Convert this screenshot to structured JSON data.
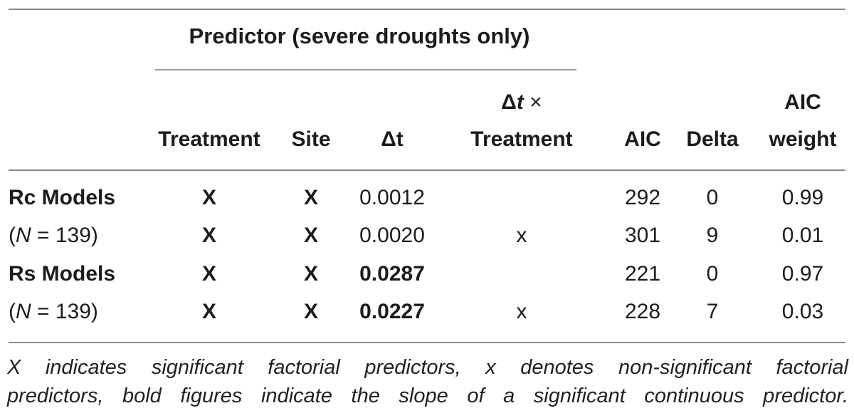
{
  "colors": {
    "text": "#1c1c1c",
    "rule_dark": "#8a8a8a",
    "rule_light": "#9e9e9e"
  },
  "table": {
    "spanner_title": "Predictor (severe droughts only)",
    "header": {
      "treatment": "Treatment",
      "site": "Site",
      "delta_t": "Δt",
      "interaction": {
        "delta": "Δ",
        "t": "t",
        "times": " ×",
        "line2": "Treatment"
      },
      "aic": "AIC",
      "delta": "Delta",
      "aic_weight": {
        "line1": "AIC",
        "line2": "weight"
      }
    },
    "rows": [
      {
        "label_pre": "Rc Models",
        "label_italic": "",
        "label_post": "",
        "label_class": "bold",
        "treatment": "X",
        "site": "X",
        "delta_t": "0.0012",
        "delta_t_class": "",
        "interaction": "",
        "aic": "292",
        "delta": "0",
        "aic_weight": "0.99"
      },
      {
        "label_pre": "(",
        "label_italic": "N",
        "label_post": " = 139)",
        "label_class": "",
        "treatment": "X",
        "site": "X",
        "delta_t": "0.0020",
        "delta_t_class": "",
        "interaction": "x",
        "aic": "301",
        "delta": "9",
        "aic_weight": "0.01"
      },
      {
        "label_pre": "Rs Models",
        "label_italic": "",
        "label_post": "",
        "label_class": "bold",
        "treatment": "X",
        "site": "X",
        "delta_t": "0.0287",
        "delta_t_class": "bold",
        "interaction": "",
        "aic": "221",
        "delta": "0",
        "aic_weight": "0.97"
      },
      {
        "label_pre": "(",
        "label_italic": "N",
        "label_post": " = 139)",
        "label_class": "",
        "treatment": "X",
        "site": "X",
        "delta_t": "0.0227",
        "delta_t_class": "bold",
        "interaction": "x",
        "aic": "228",
        "delta": "7",
        "aic_weight": "0.03"
      }
    ]
  },
  "footnote": {
    "line1": "X indicates significant factorial predictors, x denotes non-significant factorial",
    "line2": "predictors, bold figures indicate the slope of a significant continuous predictor."
  }
}
